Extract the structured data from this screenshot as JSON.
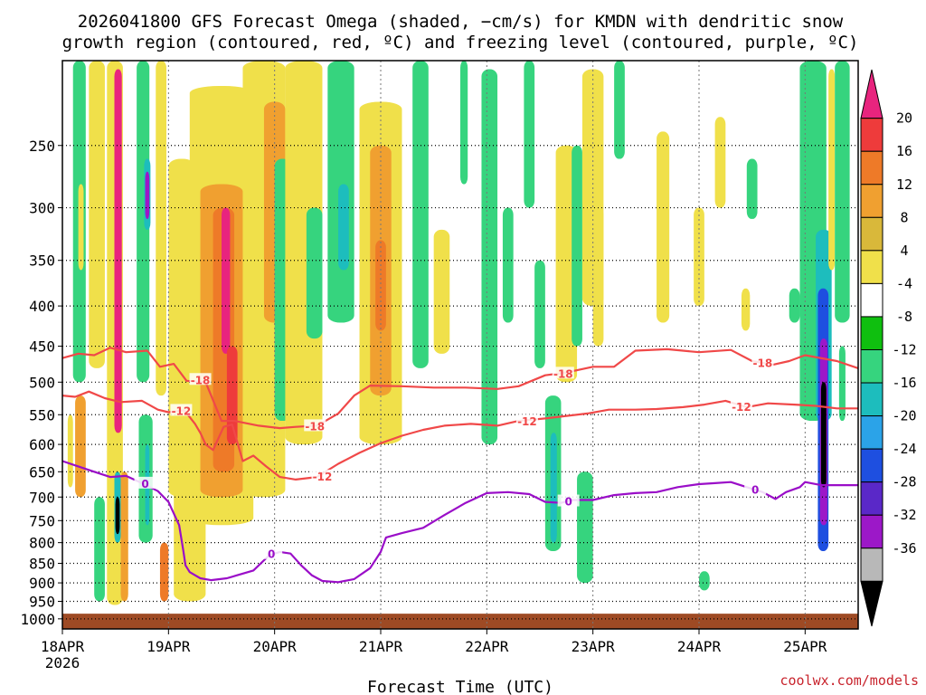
{
  "chart_data": {
    "type": "heatmap",
    "title": {
      "line1": "2026041800 GFS Forecast Omega (shaded, −cm/s) for KMDN with dendritic snow",
      "line2": "growth region (contoured, red, ºC) and freezing level (contoured, purple, ºC)"
    },
    "xlabel": "Forecast Time (UTC)",
    "credit": "coolwx.com/models",
    "x_axis": {
      "unit": "days since 18APR 00Z",
      "range": [
        0,
        7.5
      ],
      "ticks": [
        {
          "pos": 0,
          "label": "18APR",
          "sub": "2026"
        },
        {
          "pos": 1,
          "label": "19APR"
        },
        {
          "pos": 2,
          "label": "20APR"
        },
        {
          "pos": 3,
          "label": "21APR"
        },
        {
          "pos": 4,
          "label": "22APR"
        },
        {
          "pos": 5,
          "label": "23APR"
        },
        {
          "pos": 6,
          "label": "24APR"
        },
        {
          "pos": 7,
          "label": "25APR"
        }
      ]
    },
    "y_axis": {
      "unit": "hPa",
      "range": [
        1030,
        195
      ],
      "ticks": [
        "250",
        "300",
        "350",
        "400",
        "450",
        "500",
        "550",
        "600",
        "650",
        "700",
        "750",
        "800",
        "850",
        "900",
        "950",
        "1000"
      ]
    },
    "colorbar": {
      "labels": [
        "20",
        "16",
        "12",
        "8",
        "4",
        "-4",
        "-8",
        "-12",
        "-16",
        "-20",
        "-24",
        "-28",
        "-32",
        "-36"
      ],
      "colors": [
        "#e8247e",
        "#ee3b3b",
        "#ee7a28",
        "#f0a030",
        "#d9b83a",
        "#f0e04a",
        "#ffffff",
        "#0fbf0f",
        "#36d47e",
        "#1dbdbd",
        "#2ba3e8",
        "#1e4fe0",
        "#5a28c8",
        "#9c18c8",
        "#b8b8b8",
        "#000000"
      ]
    },
    "ground": {
      "color": "#9e4a24",
      "top_hpa": 985
    },
    "series": [
      {
        "name": "-18 C isotherm",
        "color": "#f04848",
        "points": [
          [
            0,
            466
          ],
          [
            0.15,
            460
          ],
          [
            0.3,
            462
          ],
          [
            0.45,
            452
          ],
          [
            0.6,
            458
          ],
          [
            0.8,
            456
          ],
          [
            0.92,
            478
          ],
          [
            1.05,
            474
          ],
          [
            1.17,
            498
          ],
          [
            1.35,
            500
          ],
          [
            1.5,
            560
          ],
          [
            1.62,
            560
          ],
          [
            1.85,
            568
          ],
          [
            2.05,
            572
          ],
          [
            2.2,
            570
          ],
          [
            2.4,
            568
          ],
          [
            2.6,
            548
          ],
          [
            2.75,
            520
          ],
          [
            2.9,
            505
          ],
          [
            3.2,
            506
          ],
          [
            3.5,
            508
          ],
          [
            3.8,
            508
          ],
          [
            4.1,
            510
          ],
          [
            4.3,
            506
          ],
          [
            4.55,
            490
          ],
          [
            4.75,
            486
          ],
          [
            5.0,
            478
          ],
          [
            5.2,
            478
          ],
          [
            5.4,
            456
          ],
          [
            5.7,
            454
          ],
          [
            6.0,
            458
          ],
          [
            6.3,
            455
          ],
          [
            6.5,
            470
          ],
          [
            6.7,
            475
          ],
          [
            6.85,
            470
          ],
          [
            7.0,
            462
          ],
          [
            7.3,
            470
          ],
          [
            7.5,
            480
          ]
        ]
      },
      {
        "name": "-12 C isotherm",
        "color": "#f04848",
        "points": [
          [
            0,
            520
          ],
          [
            0.12,
            522
          ],
          [
            0.25,
            514
          ],
          [
            0.4,
            524
          ],
          [
            0.55,
            530
          ],
          [
            0.75,
            528
          ],
          [
            0.9,
            542
          ],
          [
            1.0,
            546
          ],
          [
            1.15,
            543
          ],
          [
            1.25,
            565
          ],
          [
            1.3,
            580
          ],
          [
            1.35,
            600
          ],
          [
            1.42,
            610
          ],
          [
            1.52,
            570
          ],
          [
            1.6,
            566
          ],
          [
            1.7,
            630
          ],
          [
            1.8,
            620
          ],
          [
            1.92,
            640
          ],
          [
            2.05,
            660
          ],
          [
            2.2,
            665
          ],
          [
            2.4,
            660
          ],
          [
            2.6,
            635
          ],
          [
            2.8,
            615
          ],
          [
            3.0,
            598
          ],
          [
            3.2,
            585
          ],
          [
            3.4,
            575
          ],
          [
            3.6,
            568
          ],
          [
            3.85,
            565
          ],
          [
            4.1,
            568
          ],
          [
            4.3,
            560
          ],
          [
            4.55,
            556
          ],
          [
            4.75,
            552
          ],
          [
            4.95,
            548
          ],
          [
            5.15,
            542
          ],
          [
            5.4,
            542
          ],
          [
            5.6,
            541
          ],
          [
            5.85,
            538
          ],
          [
            6.05,
            534
          ],
          [
            6.25,
            528
          ],
          [
            6.45,
            538
          ],
          [
            6.65,
            532
          ],
          [
            6.9,
            534
          ],
          [
            7.1,
            536
          ],
          [
            7.3,
            540
          ],
          [
            7.5,
            540
          ]
        ]
      },
      {
        "name": "0 C freezing level",
        "color": "#9a0ec8",
        "points": [
          [
            0,
            630
          ],
          [
            0.15,
            640
          ],
          [
            0.3,
            650
          ],
          [
            0.45,
            660
          ],
          [
            0.6,
            658
          ],
          [
            0.75,
            672
          ],
          [
            0.9,
            688
          ],
          [
            1.0,
            710
          ],
          [
            1.1,
            760
          ],
          [
            1.14,
            820
          ],
          [
            1.16,
            855
          ],
          [
            1.2,
            872
          ],
          [
            1.3,
            888
          ],
          [
            1.4,
            893
          ],
          [
            1.55,
            888
          ],
          [
            1.65,
            880
          ],
          [
            1.8,
            868
          ],
          [
            1.95,
            830
          ],
          [
            2.05,
            822
          ],
          [
            2.15,
            826
          ],
          [
            2.25,
            855
          ],
          [
            2.35,
            880
          ],
          [
            2.45,
            895
          ],
          [
            2.6,
            898
          ],
          [
            2.75,
            890
          ],
          [
            2.9,
            862
          ],
          [
            3.0,
            822
          ],
          [
            3.05,
            788
          ],
          [
            3.2,
            778
          ],
          [
            3.4,
            766
          ],
          [
            3.6,
            738
          ],
          [
            3.8,
            712
          ],
          [
            4.0,
            692
          ],
          [
            4.2,
            690
          ],
          [
            4.4,
            694
          ],
          [
            4.55,
            710
          ],
          [
            4.7,
            712
          ],
          [
            4.8,
            706
          ],
          [
            5.0,
            706
          ],
          [
            5.2,
            696
          ],
          [
            5.4,
            692
          ],
          [
            5.6,
            690
          ],
          [
            5.8,
            680
          ],
          [
            6.0,
            674
          ],
          [
            6.15,
            672
          ],
          [
            6.3,
            670
          ],
          [
            6.45,
            680
          ],
          [
            6.6,
            690
          ],
          [
            6.72,
            704
          ],
          [
            6.82,
            690
          ],
          [
            6.95,
            680
          ],
          [
            7.0,
            670
          ],
          [
            7.15,
            676
          ],
          [
            7.3,
            676
          ],
          [
            7.5,
            676
          ]
        ]
      }
    ],
    "contour_labels": [
      {
        "text": "-18",
        "x": 1.3,
        "y": 496,
        "color": "#f04848"
      },
      {
        "text": "-18",
        "x": 2.38,
        "y": 568,
        "color": "#f04848"
      },
      {
        "text": "-18",
        "x": 4.72,
        "y": 487,
        "color": "#f04848"
      },
      {
        "text": "-18",
        "x": 6.6,
        "y": 472,
        "color": "#f04848"
      },
      {
        "text": "-12",
        "x": 1.12,
        "y": 543,
        "color": "#f04848"
      },
      {
        "text": "-12",
        "x": 2.45,
        "y": 658,
        "color": "#f04848"
      },
      {
        "text": "-12",
        "x": 4.38,
        "y": 560,
        "color": "#f04848"
      },
      {
        "text": "-12",
        "x": 6.4,
        "y": 537,
        "color": "#f04848"
      },
      {
        "text": "0",
        "x": 0.78,
        "y": 672,
        "color": "#9a0ec8"
      },
      {
        "text": "0",
        "x": 1.97,
        "y": 826,
        "color": "#9a0ec8"
      },
      {
        "text": "0",
        "x": 4.77,
        "y": 708,
        "color": "#9a0ec8"
      },
      {
        "text": "0",
        "x": 6.53,
        "y": 684,
        "color": "#9a0ec8"
      }
    ],
    "omega_cells": [
      {
        "x0": 0.42,
        "x1": 0.57,
        "p0": 195,
        "p1": 960,
        "v": 6
      },
      {
        "x0": 0.49,
        "x1": 0.56,
        "p0": 200,
        "p1": 580,
        "v": 20
      },
      {
        "x0": 0.49,
        "x1": 0.55,
        "p0": 650,
        "p1": 800,
        "v": -12
      },
      {
        "x0": 0.5,
        "x1": 0.54,
        "p0": 700,
        "p1": 780,
        "v": -36
      },
      {
        "x0": 0.55,
        "x1": 0.62,
        "p0": 650,
        "p1": 950,
        "v": 10
      },
      {
        "x0": 0.1,
        "x1": 0.22,
        "p0": 195,
        "p1": 500,
        "v": -8
      },
      {
        "x0": 0.15,
        "x1": 0.2,
        "p0": 280,
        "p1": 360,
        "v": 6
      },
      {
        "x0": 0.05,
        "x1": 0.1,
        "p0": 550,
        "p1": 680,
        "v": 6
      },
      {
        "x0": 0.12,
        "x1": 0.22,
        "p0": 520,
        "p1": 700,
        "v": 8
      },
      {
        "x0": 0.25,
        "x1": 0.4,
        "p0": 195,
        "p1": 480,
        "v": 6
      },
      {
        "x0": 0.3,
        "x1": 0.4,
        "p0": 700,
        "p1": 950,
        "v": -8
      },
      {
        "x0": 0.7,
        "x1": 0.82,
        "p0": 195,
        "p1": 500,
        "v": -8
      },
      {
        "x0": 0.77,
        "x1": 0.83,
        "p0": 260,
        "p1": 320,
        "v": -14
      },
      {
        "x0": 0.78,
        "x1": 0.82,
        "p0": 270,
        "p1": 310,
        "v": -30
      },
      {
        "x0": 0.72,
        "x1": 0.85,
        "p0": 550,
        "p1": 800,
        "v": -10
      },
      {
        "x0": 0.78,
        "x1": 0.82,
        "p0": 600,
        "p1": 760,
        "v": -14
      },
      {
        "x0": 0.88,
        "x1": 0.98,
        "p0": 195,
        "p1": 520,
        "v": 5
      },
      {
        "x0": 0.92,
        "x1": 1.0,
        "p0": 800,
        "p1": 950,
        "v": 12
      },
      {
        "x0": 1.0,
        "x1": 1.25,
        "p0": 260,
        "p1": 700,
        "v": 5
      },
      {
        "x0": 1.05,
        "x1": 1.35,
        "p0": 500,
        "p1": 950,
        "v": 6
      },
      {
        "x0": 1.2,
        "x1": 1.8,
        "p0": 210,
        "p1": 760,
        "v": 6
      },
      {
        "x0": 1.3,
        "x1": 1.7,
        "p0": 280,
        "p1": 700,
        "v": 10
      },
      {
        "x0": 1.42,
        "x1": 1.62,
        "p0": 300,
        "p1": 650,
        "v": 14
      },
      {
        "x0": 1.5,
        "x1": 1.58,
        "p0": 300,
        "p1": 460,
        "v": 20
      },
      {
        "x0": 1.55,
        "x1": 1.65,
        "p0": 450,
        "p1": 600,
        "v": 18
      },
      {
        "x0": 1.7,
        "x1": 2.1,
        "p0": 195,
        "p1": 700,
        "v": 5
      },
      {
        "x0": 1.9,
        "x1": 2.1,
        "p0": 220,
        "p1": 420,
        "v": 8
      },
      {
        "x0": 2.0,
        "x1": 2.15,
        "p0": 260,
        "p1": 560,
        "v": -8
      },
      {
        "x0": 2.1,
        "x1": 2.45,
        "p0": 195,
        "p1": 600,
        "v": 5
      },
      {
        "x0": 2.25,
        "x1": 2.4,
        "p0": 220,
        "p1": 300,
        "v": 6
      },
      {
        "x0": 2.3,
        "x1": 2.45,
        "p0": 300,
        "p1": 440,
        "v": -8
      },
      {
        "x0": 2.5,
        "x1": 2.75,
        "p0": 195,
        "p1": 420,
        "v": -8
      },
      {
        "x0": 2.6,
        "x1": 2.7,
        "p0": 280,
        "p1": 360,
        "v": -12
      },
      {
        "x0": 2.8,
        "x1": 3.2,
        "p0": 220,
        "p1": 600,
        "v": 5
      },
      {
        "x0": 2.9,
        "x1": 3.1,
        "p0": 250,
        "p1": 520,
        "v": 10
      },
      {
        "x0": 2.95,
        "x1": 3.05,
        "p0": 330,
        "p1": 430,
        "v": 14
      },
      {
        "x0": 3.3,
        "x1": 3.45,
        "p0": 195,
        "p1": 480,
        "v": -8
      },
      {
        "x0": 3.5,
        "x1": 3.65,
        "p0": 320,
        "p1": 460,
        "v": 5
      },
      {
        "x0": 3.75,
        "x1": 3.82,
        "p0": 195,
        "p1": 280,
        "v": -8
      },
      {
        "x0": 3.95,
        "x1": 4.1,
        "p0": 200,
        "p1": 600,
        "v": -8
      },
      {
        "x0": 4.15,
        "x1": 4.25,
        "p0": 300,
        "p1": 420,
        "v": -8
      },
      {
        "x0": 4.35,
        "x1": 4.45,
        "p0": 195,
        "p1": 300,
        "v": -8
      },
      {
        "x0": 4.45,
        "x1": 4.55,
        "p0": 350,
        "p1": 480,
        "v": -8
      },
      {
        "x0": 4.55,
        "x1": 4.7,
        "p0": 520,
        "p1": 820,
        "v": -8
      },
      {
        "x0": 4.6,
        "x1": 4.66,
        "p0": 580,
        "p1": 800,
        "v": -12
      },
      {
        "x0": 4.65,
        "x1": 4.85,
        "p0": 250,
        "p1": 500,
        "v": 5
      },
      {
        "x0": 4.8,
        "x1": 4.9,
        "p0": 250,
        "p1": 450,
        "v": -8
      },
      {
        "x0": 4.9,
        "x1": 5.1,
        "p0": 200,
        "p1": 400,
        "v": 5
      },
      {
        "x0": 4.85,
        "x1": 5.0,
        "p0": 650,
        "p1": 900,
        "v": -8
      },
      {
        "x0": 5.0,
        "x1": 5.1,
        "p0": 300,
        "p1": 450,
        "v": 5
      },
      {
        "x0": 5.2,
        "x1": 5.3,
        "p0": 195,
        "p1": 260,
        "v": -8
      },
      {
        "x0": 5.6,
        "x1": 5.72,
        "p0": 240,
        "p1": 420,
        "v": 5
      },
      {
        "x0": 5.95,
        "x1": 6.05,
        "p0": 300,
        "p1": 400,
        "v": 5
      },
      {
        "x0": 6.0,
        "x1": 6.1,
        "p0": 870,
        "p1": 920,
        "v": -8
      },
      {
        "x0": 6.15,
        "x1": 6.25,
        "p0": 230,
        "p1": 300,
        "v": 5
      },
      {
        "x0": 6.4,
        "x1": 6.48,
        "p0": 380,
        "p1": 430,
        "v": 5
      },
      {
        "x0": 6.45,
        "x1": 6.55,
        "p0": 260,
        "p1": 310,
        "v": -8
      },
      {
        "x0": 6.85,
        "x1": 6.95,
        "p0": 380,
        "p1": 420,
        "v": -8
      },
      {
        "x0": 6.95,
        "x1": 7.2,
        "p0": 195,
        "p1": 560,
        "v": -8
      },
      {
        "x0": 7.1,
        "x1": 7.25,
        "p0": 320,
        "p1": 560,
        "v": -12
      },
      {
        "x0": 7.12,
        "x1": 7.22,
        "p0": 380,
        "p1": 820,
        "v": -20
      },
      {
        "x0": 7.14,
        "x1": 7.21,
        "p0": 440,
        "p1": 760,
        "v": -28
      },
      {
        "x0": 7.15,
        "x1": 7.2,
        "p0": 500,
        "p1": 680,
        "v": -36
      },
      {
        "x0": 7.22,
        "x1": 7.28,
        "p0": 200,
        "p1": 360,
        "v": 5
      },
      {
        "x0": 7.28,
        "x1": 7.42,
        "p0": 195,
        "p1": 420,
        "v": -8
      },
      {
        "x0": 7.32,
        "x1": 7.38,
        "p0": 450,
        "p1": 560,
        "v": -8
      }
    ]
  }
}
